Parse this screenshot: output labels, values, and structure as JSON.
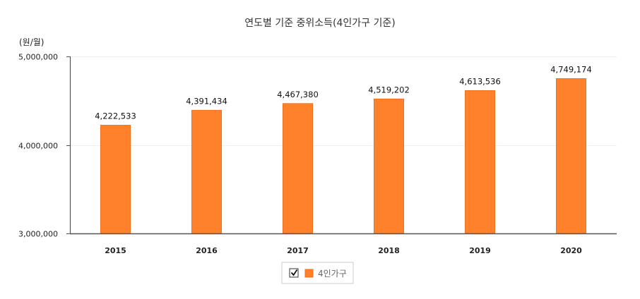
{
  "chart_data": {
    "type": "bar",
    "title": "연도별 기준 중위소득(4인가구 기준)",
    "ylabel": "(원/월)",
    "xlabel": "",
    "categories": [
      "2015",
      "2016",
      "2017",
      "2018",
      "2019",
      "2020"
    ],
    "series": [
      {
        "name": "4인가구",
        "values": [
          4222533,
          4391434,
          4467380,
          4519202,
          4613536,
          4749174
        ]
      }
    ],
    "data_labels": [
      "4,222,533",
      "4,391,434",
      "4,467,380",
      "4,519,202",
      "4,613,536",
      "4,749,174"
    ],
    "ylim": [
      3000000,
      5000000
    ],
    "yticks": [
      {
        "value": 5000000,
        "label": "5,000,000"
      },
      {
        "value": 4000000,
        "label": "4,000,000"
      },
      {
        "value": 3000000,
        "label": "3,000,000"
      }
    ],
    "grid": true,
    "legend": {
      "position": "bottom",
      "checked": true
    },
    "colors": {
      "bar": "#FF812B",
      "bar_edge": "#F2701A",
      "axis": "#555555",
      "grid": "#EFEFEF"
    }
  }
}
